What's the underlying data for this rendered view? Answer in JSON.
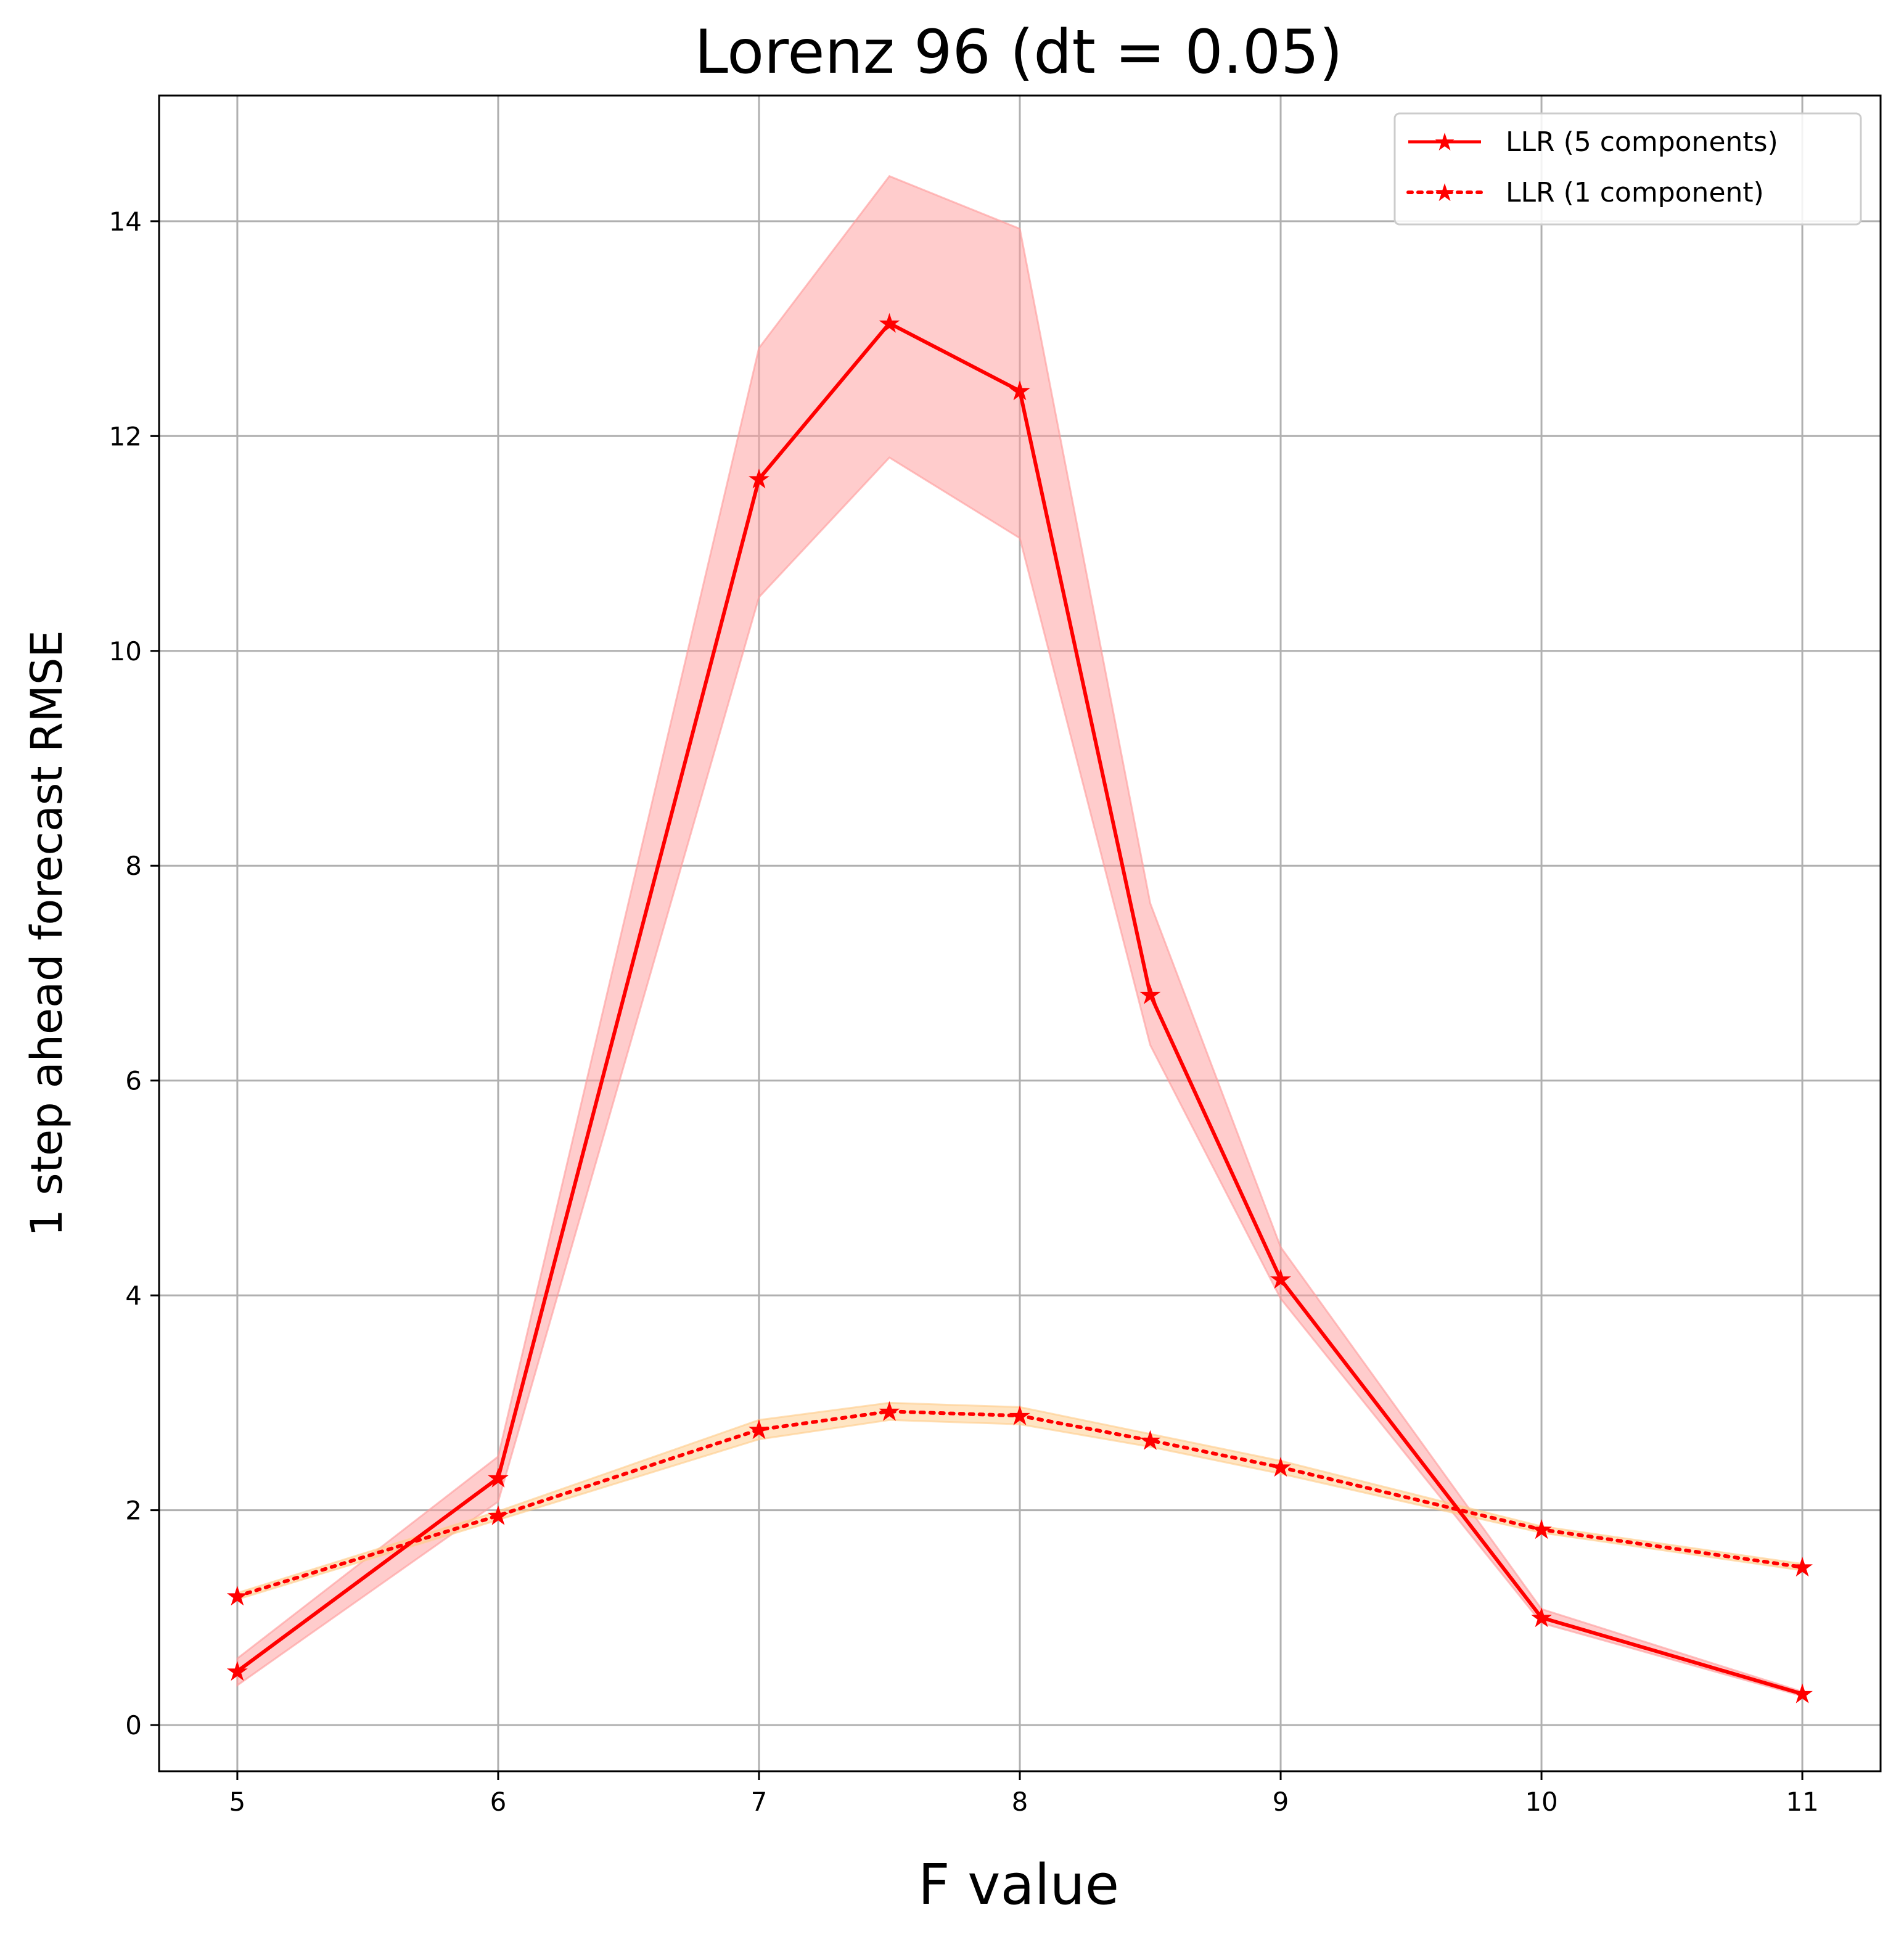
{
  "chart_data": {
    "type": "line",
    "title": "Lorenz 96 (dt = 0.05)",
    "xlabel": "F value",
    "ylabel": "1 step ahead forecast RMSE",
    "xlim": [
      4.7,
      11.3
    ],
    "ylim": [
      -0.43,
      15.17
    ],
    "xticks": [
      5,
      6,
      7,
      8,
      9,
      10,
      11
    ],
    "yticks": [
      0,
      2,
      4,
      6,
      8,
      10,
      12,
      14
    ],
    "grid": true,
    "legend_position": "top-right",
    "x": [
      5,
      6,
      7,
      7.5,
      8,
      8.5,
      9,
      10,
      11
    ],
    "series": [
      {
        "name": "LLR (5 components)",
        "style": "solid",
        "color": "#ff0000",
        "band_color": "#ff9999",
        "values": [
          0.5,
          2.3,
          11.6,
          13.05,
          12.42,
          6.8,
          4.15,
          1.0,
          0.29
        ],
        "lower": [
          0.37,
          2.08,
          10.5,
          11.8,
          11.05,
          6.33,
          3.97,
          0.95,
          0.27
        ],
        "upper": [
          0.62,
          2.5,
          12.82,
          14.42,
          13.93,
          7.65,
          4.45,
          1.08,
          0.31
        ]
      },
      {
        "name": "LLR (1 component)",
        "style": "dotted",
        "color": "#ff0000",
        "band_color": "#ffcc88",
        "values": [
          1.2,
          1.95,
          2.75,
          2.92,
          2.88,
          2.65,
          2.4,
          1.82,
          1.47
        ],
        "lower": [
          1.17,
          1.91,
          2.66,
          2.84,
          2.8,
          2.59,
          2.34,
          1.79,
          1.44
        ],
        "upper": [
          1.23,
          1.99,
          2.84,
          3.0,
          2.96,
          2.71,
          2.46,
          1.85,
          1.5
        ]
      }
    ]
  }
}
